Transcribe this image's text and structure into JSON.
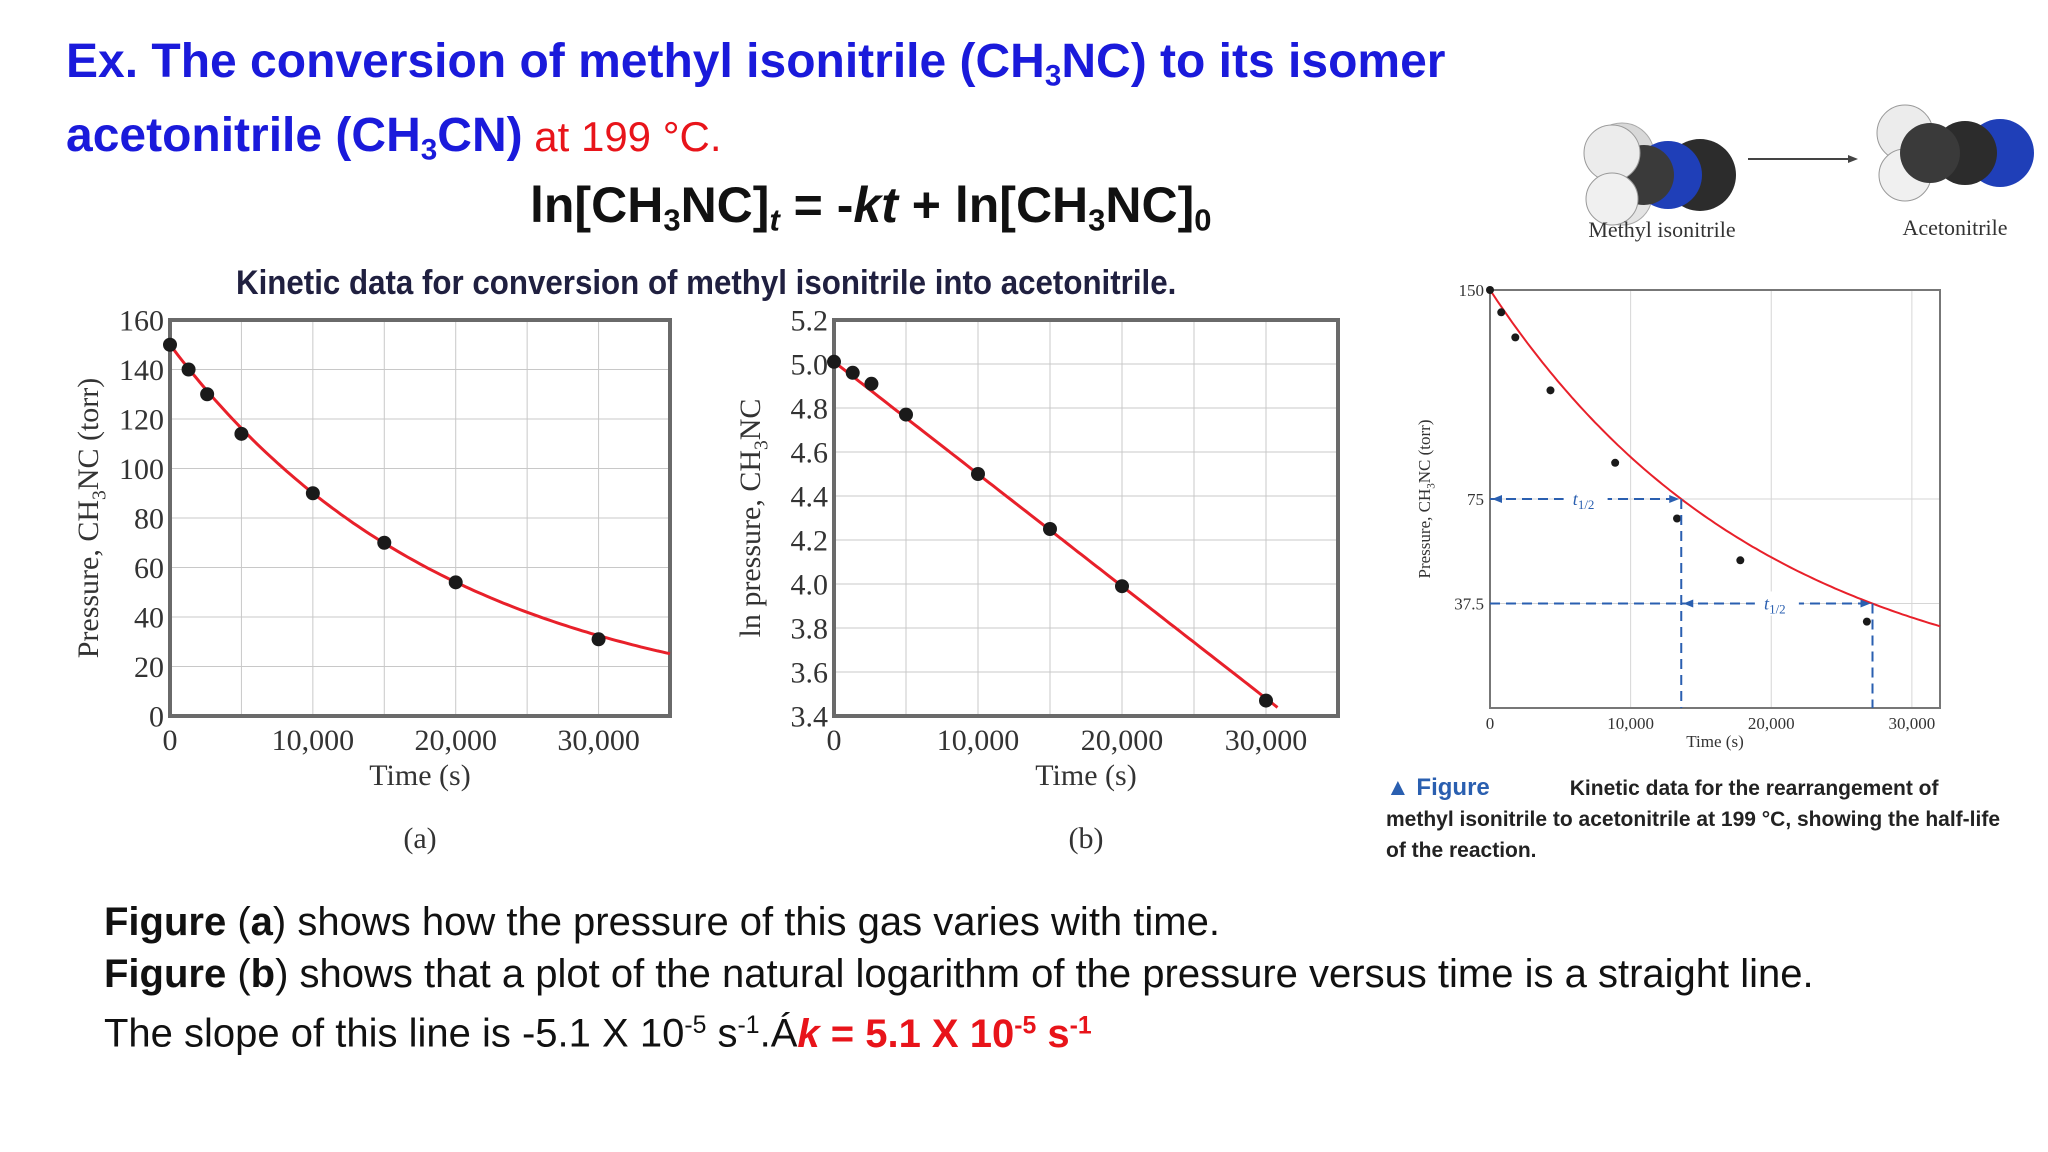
{
  "header": {
    "line1": "Ex. The conversion of methyl isonitrile (CH",
    "line1_sub": "3",
    "line1_end": "NC) to its isomer",
    "line2": "acetonitrile (CH",
    "line2_sub": "3",
    "line2_end": "CN)",
    "line2_red": " at 199 °C."
  },
  "equation": {
    "part1": "ln[CH",
    "sub1": "3",
    "part2": "NC]",
    "sub_t": "t",
    "part3": " = -",
    "kt": "kt",
    "part4": " + ln[CH",
    "sub2": "3",
    "part5": "NC]",
    "sub0": "0"
  },
  "chart_title": "Kinetic data for conversion of methyl isonitrile into acetonitrile.",
  "molecules": {
    "left_label": "Methyl isonitrile",
    "right_label": "Acetonitrile"
  },
  "caption": {
    "figure_word": "▲ Figure",
    "text": "Kinetic data for the rearrangement of methyl isonitrile to acetonitrile at 199 °C, showing the half-life of the reaction."
  },
  "bottom": {
    "l1_bold": "Figure",
    "l1_a": " (",
    "l1_letter": "a",
    "l1_rest": ") shows how the pressure of this gas varies with time.",
    "l2_bold": "Figure",
    "l2_a": " (",
    "l2_letter": "b",
    "l2_rest": ") shows that a plot of the natural logarithm of the pressure versus time is a straight line.",
    "l3_a": "The slope of this line is -5.1 X 10",
    "l3_sup1": "-5",
    "l3_b": " s",
    "l3_sup2": "-1",
    "l3_c": ".",
    "l3_arrow": "Á",
    "l3_red_k": "k",
    "l3_red_mid": " = 5.1 X 10",
    "l3_red_sup1": "-5",
    "l3_red_s": " s",
    "l3_red_sup2": "-1"
  },
  "chart_data": [
    {
      "type": "scatter",
      "label": "(a)",
      "xlabel": "Time (s)",
      "ylabel": "Pressure, CH3NC (torr)",
      "ylabel_parts": [
        "Pressure, CH",
        "3",
        "NC (torr)"
      ],
      "xlim": [
        0,
        35000
      ],
      "ylim": [
        0,
        160
      ],
      "x_ticks": [
        0,
        10000,
        20000,
        30000
      ],
      "x_tick_labels": [
        "0",
        "10,000",
        "20,000",
        "30,000"
      ],
      "y_ticks": [
        0,
        20,
        40,
        60,
        80,
        100,
        120,
        140,
        160
      ],
      "y_tick_labels": [
        "0",
        "20",
        "40",
        "60",
        "80",
        "100",
        "120",
        "140",
        "160"
      ],
      "grid": true,
      "x": [
        0,
        1300,
        2600,
        5000,
        10000,
        15000,
        20000,
        30000
      ],
      "y": [
        150,
        140,
        130,
        114,
        90,
        70,
        54,
        31
      ],
      "fit": "exponential",
      "p0": 150,
      "k": 5.1e-05,
      "fit_color": "#e8202a"
    },
    {
      "type": "scatter",
      "label": "(b)",
      "xlabel": "Time (s)",
      "ylabel": "ln pressure, CH3NC",
      "ylabel_parts": [
        "ln pressure, CH",
        "3",
        "NC"
      ],
      "xlim": [
        0,
        35000
      ],
      "ylim": [
        3.4,
        5.2
      ],
      "x_ticks": [
        0,
        10000,
        20000,
        30000
      ],
      "x_tick_labels": [
        "0",
        "10,000",
        "20,000",
        "30,000"
      ],
      "y_ticks": [
        3.4,
        3.6,
        3.8,
        4.0,
        4.2,
        4.4,
        4.6,
        4.8,
        5.0,
        5.2
      ],
      "y_tick_labels": [
        "3.4",
        "3.6",
        "3.8",
        "4.0",
        "4.2",
        "4.4",
        "4.6",
        "4.8",
        "5.0",
        "5.2"
      ],
      "grid": true,
      "x": [
        0,
        1300,
        2600,
        5000,
        10000,
        15000,
        20000,
        30000
      ],
      "y": [
        5.01,
        4.96,
        4.91,
        4.77,
        4.5,
        4.25,
        3.99,
        3.47
      ],
      "fit": "linear",
      "intercept": 5.01,
      "slope": -5.1e-05,
      "fit_color": "#e8202a"
    },
    {
      "type": "scatter",
      "label": "half-life",
      "xlabel": "Time (s)",
      "ylabel": "Pressure, CH3NC (torr)",
      "ylabel_parts": [
        "Pressure, CH",
        "3",
        "NC (torr)"
      ],
      "xlim": [
        0,
        32000
      ],
      "ylim": [
        0,
        150
      ],
      "x_ticks": [
        0,
        10000,
        20000,
        30000
      ],
      "x_tick_labels": [
        "0",
        "10,000",
        "20,000",
        "30,000"
      ],
      "y_ticks": [
        37.5,
        75,
        150
      ],
      "y_tick_labels": [
        "37.5",
        "75",
        "150"
      ],
      "grid": true,
      "x": [
        0,
        800,
        1800,
        4300,
        8900,
        13300,
        17800,
        26800
      ],
      "y": [
        150,
        142,
        133,
        114,
        88,
        68,
        53,
        31
      ],
      "fit": "exponential",
      "p0": 150,
      "k": 5.1e-05,
      "half_life_marks": [
        {
          "y": 75,
          "x": 13600,
          "label": "t",
          "sub": "1/2"
        },
        {
          "y": 37.5,
          "x": 27200,
          "label": "t",
          "sub": "1/2"
        }
      ],
      "fit_color": "#e8202a"
    }
  ]
}
